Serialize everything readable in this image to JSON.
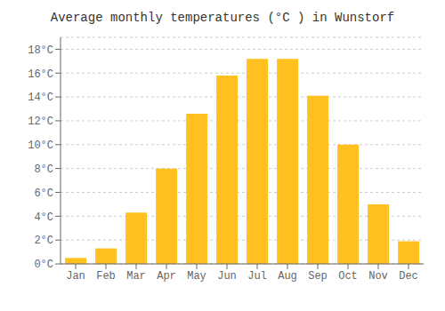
{
  "chart_data": {
    "type": "bar",
    "title": "Average monthly temperatures (°C ) in Wunstorf",
    "categories": [
      "Jan",
      "Feb",
      "Mar",
      "Apr",
      "May",
      "Jun",
      "Jul",
      "Aug",
      "Sep",
      "Oct",
      "Nov",
      "Dec"
    ],
    "values": [
      0.5,
      1.3,
      4.3,
      8.0,
      12.6,
      15.8,
      17.2,
      17.2,
      14.1,
      10.0,
      5.0,
      1.9
    ],
    "color": "#FFC020",
    "ylim": [
      0,
      19
    ],
    "yticks": [
      {
        "value": 0,
        "label": "0°C"
      },
      {
        "value": 2,
        "label": "2°C"
      },
      {
        "value": 4,
        "label": "4°C"
      },
      {
        "value": 6,
        "label": "6°C"
      },
      {
        "value": 8,
        "label": "8°C"
      },
      {
        "value": 10,
        "label": "10°C"
      },
      {
        "value": 12,
        "label": "12°C"
      },
      {
        "value": 14,
        "label": "14°C"
      },
      {
        "value": 16,
        "label": "16°C"
      },
      {
        "value": 18,
        "label": "18°C"
      }
    ],
    "grid": true
  }
}
